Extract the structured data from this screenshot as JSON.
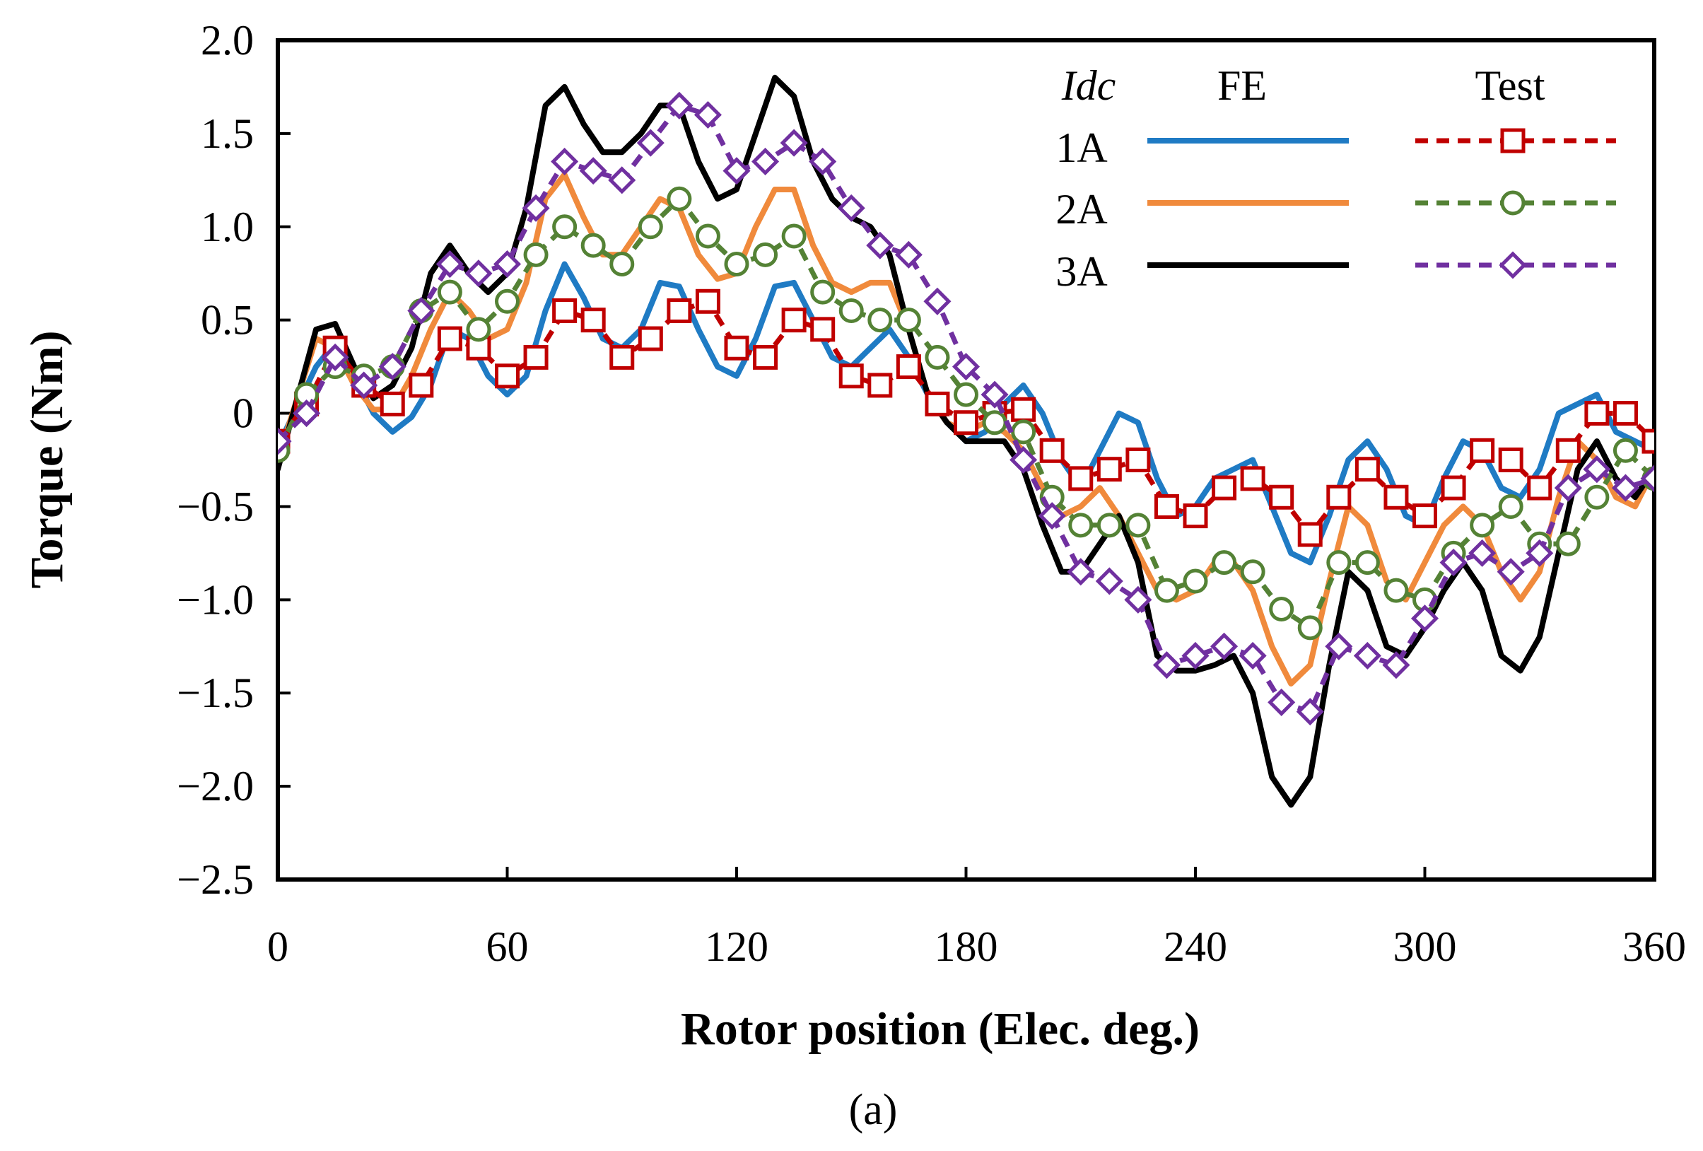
{
  "caption": "(a)",
  "chart_data": {
    "type": "line",
    "title": "",
    "xlabel": "Rotor position (Elec. deg.)",
    "ylabel": "Torque (Nm)",
    "xlim": [
      0,
      360
    ],
    "ylim": [
      -2.5,
      2.0
    ],
    "xticks": [
      0,
      60,
      120,
      180,
      240,
      300,
      360
    ],
    "xtick_labels": [
      "0",
      "60",
      "120",
      "180",
      "240",
      "300",
      "360"
    ],
    "yticks": [
      2.0,
      1.5,
      1.0,
      0.5,
      0,
      -0.5,
      -1.0,
      -1.5,
      -2.0,
      -2.5
    ],
    "ytick_labels": [
      "2.0",
      "1.5",
      "1.0",
      "0.5",
      "0",
      "−0.5",
      "−1.0",
      "−1.5",
      "−2.0",
      "−2.5"
    ],
    "grid": false,
    "legend": {
      "placement": "top-right",
      "header_left": "Idc",
      "header_fe": "FE",
      "header_test": "Test",
      "rows": [
        "1A",
        "2A",
        "3A"
      ]
    },
    "series": [
      {
        "name": "FE 1A",
        "color": "#1f7bc4",
        "style": "solid",
        "marker": "none",
        "x": [
          0,
          10,
          15,
          20,
          25,
          30,
          35,
          40,
          45,
          50,
          55,
          60,
          65,
          70,
          75,
          80,
          85,
          90,
          95,
          100,
          105,
          110,
          115,
          120,
          125,
          130,
          135,
          140,
          145,
          150,
          155,
          160,
          165,
          170,
          175,
          180,
          185,
          190,
          195,
          200,
          205,
          210,
          215,
          220,
          225,
          230,
          235,
          240,
          245,
          250,
          255,
          260,
          265,
          270,
          275,
          280,
          285,
          290,
          295,
          300,
          305,
          310,
          315,
          320,
          325,
          330,
          335,
          340,
          345,
          350,
          355,
          360
        ],
        "y": [
          -0.18,
          0.25,
          0.38,
          0.2,
          0.0,
          -0.1,
          -0.02,
          0.15,
          0.45,
          0.4,
          0.2,
          0.1,
          0.2,
          0.55,
          0.8,
          0.62,
          0.4,
          0.35,
          0.45,
          0.7,
          0.68,
          0.45,
          0.25,
          0.2,
          0.4,
          0.68,
          0.7,
          0.5,
          0.3,
          0.25,
          0.35,
          0.45,
          0.3,
          0.1,
          -0.05,
          -0.15,
          -0.1,
          0.05,
          0.15,
          0.0,
          -0.25,
          -0.4,
          -0.2,
          0.0,
          -0.05,
          -0.35,
          -0.55,
          -0.5,
          -0.35,
          -0.3,
          -0.25,
          -0.5,
          -0.75,
          -0.8,
          -0.55,
          -0.25,
          -0.15,
          -0.3,
          -0.55,
          -0.6,
          -0.35,
          -0.15,
          -0.2,
          -0.4,
          -0.45,
          -0.3,
          0.0,
          0.05,
          0.1,
          -0.1,
          -0.15,
          -0.2
        ]
      },
      {
        "name": "FE 2A",
        "color": "#f08a3c",
        "style": "solid",
        "marker": "none",
        "x": [
          0,
          10,
          15,
          20,
          25,
          30,
          35,
          40,
          45,
          50,
          55,
          60,
          65,
          70,
          75,
          80,
          85,
          90,
          95,
          100,
          105,
          110,
          115,
          120,
          125,
          130,
          135,
          140,
          145,
          150,
          155,
          160,
          165,
          170,
          175,
          180,
          185,
          190,
          195,
          200,
          205,
          210,
          215,
          220,
          225,
          230,
          235,
          240,
          245,
          250,
          255,
          260,
          265,
          270,
          275,
          280,
          285,
          290,
          295,
          300,
          305,
          310,
          315,
          320,
          325,
          330,
          335,
          340,
          345,
          350,
          355,
          360
        ],
        "y": [
          -0.25,
          0.4,
          0.35,
          0.15,
          0.02,
          0.02,
          0.2,
          0.45,
          0.65,
          0.55,
          0.4,
          0.45,
          0.7,
          1.15,
          1.28,
          1.05,
          0.85,
          0.85,
          1.0,
          1.15,
          1.1,
          0.85,
          0.72,
          0.75,
          1.0,
          1.2,
          1.2,
          0.9,
          0.7,
          0.65,
          0.7,
          0.7,
          0.45,
          0.1,
          -0.05,
          -0.1,
          -0.05,
          -0.1,
          -0.2,
          -0.4,
          -0.55,
          -0.5,
          -0.4,
          -0.55,
          -0.75,
          -0.95,
          -1.0,
          -0.95,
          -0.8,
          -0.8,
          -0.95,
          -1.25,
          -1.45,
          -1.35,
          -0.9,
          -0.5,
          -0.6,
          -0.9,
          -1.0,
          -0.8,
          -0.6,
          -0.5,
          -0.6,
          -0.85,
          -1.0,
          -0.85,
          -0.45,
          -0.15,
          -0.25,
          -0.45,
          -0.5,
          -0.3
        ]
      },
      {
        "name": "FE 3A",
        "color": "#000000",
        "style": "solid",
        "marker": "none",
        "x": [
          0,
          10,
          15,
          20,
          25,
          30,
          35,
          40,
          45,
          50,
          55,
          60,
          65,
          70,
          75,
          80,
          85,
          90,
          95,
          100,
          105,
          110,
          115,
          120,
          125,
          130,
          135,
          140,
          145,
          150,
          155,
          160,
          165,
          170,
          175,
          180,
          185,
          190,
          195,
          200,
          205,
          210,
          215,
          220,
          225,
          230,
          235,
          240,
          245,
          250,
          255,
          260,
          265,
          270,
          275,
          280,
          285,
          290,
          295,
          300,
          305,
          310,
          315,
          320,
          325,
          330,
          335,
          340,
          345,
          350,
          355,
          360
        ],
        "y": [
          -0.3,
          0.45,
          0.48,
          0.25,
          0.08,
          0.15,
          0.35,
          0.75,
          0.9,
          0.75,
          0.65,
          0.75,
          1.1,
          1.65,
          1.75,
          1.55,
          1.4,
          1.4,
          1.5,
          1.65,
          1.65,
          1.35,
          1.15,
          1.2,
          1.5,
          1.8,
          1.7,
          1.35,
          1.15,
          1.05,
          1.0,
          0.85,
          0.45,
          0.1,
          -0.05,
          -0.15,
          -0.15,
          -0.15,
          -0.3,
          -0.6,
          -0.85,
          -0.85,
          -0.7,
          -0.55,
          -0.8,
          -1.3,
          -1.38,
          -1.38,
          -1.35,
          -1.3,
          -1.5,
          -1.95,
          -2.1,
          -1.95,
          -1.35,
          -0.85,
          -0.95,
          -1.25,
          -1.3,
          -1.15,
          -0.95,
          -0.8,
          -0.95,
          -1.3,
          -1.38,
          -1.2,
          -0.75,
          -0.3,
          -0.15,
          -0.35,
          -0.45,
          -0.3
        ]
      },
      {
        "name": "Test 1A",
        "color": "#c00000",
        "style": "dashed",
        "marker": "square",
        "x": [
          0,
          7.5,
          15,
          22.5,
          30,
          37.5,
          45,
          52.5,
          60,
          67.5,
          75,
          82.5,
          90,
          97.5,
          105,
          112.5,
          120,
          127.5,
          135,
          142.5,
          150,
          157.5,
          165,
          172.5,
          180,
          187.5,
          195,
          202.5,
          210,
          217.5,
          225,
          232.5,
          240,
          247.5,
          255,
          262.5,
          270,
          277.5,
          285,
          292.5,
          300,
          307.5,
          315,
          322.5,
          330,
          337.5,
          345,
          352.5,
          360
        ],
        "y": [
          -0.15,
          0.05,
          0.35,
          0.15,
          0.05,
          0.15,
          0.4,
          0.35,
          0.2,
          0.3,
          0.55,
          0.5,
          0.3,
          0.4,
          0.55,
          0.6,
          0.35,
          0.3,
          0.5,
          0.45,
          0.2,
          0.15,
          0.25,
          0.05,
          -0.05,
          0.0,
          0.02,
          -0.2,
          -0.35,
          -0.3,
          -0.25,
          -0.5,
          -0.55,
          -0.4,
          -0.35,
          -0.45,
          -0.65,
          -0.45,
          -0.3,
          -0.45,
          -0.55,
          -0.4,
          -0.2,
          -0.25,
          -0.4,
          -0.2,
          0.0,
          0.0,
          -0.15
        ]
      },
      {
        "name": "Test 2A",
        "color": "#548235",
        "style": "dashed",
        "marker": "circle",
        "x": [
          0,
          7.5,
          15,
          22.5,
          30,
          37.5,
          45,
          52.5,
          60,
          67.5,
          75,
          82.5,
          90,
          97.5,
          105,
          112.5,
          120,
          127.5,
          135,
          142.5,
          150,
          157.5,
          165,
          172.5,
          180,
          187.5,
          195,
          202.5,
          210,
          217.5,
          225,
          232.5,
          240,
          247.5,
          255,
          262.5,
          270,
          277.5,
          285,
          292.5,
          300,
          307.5,
          315,
          322.5,
          330,
          337.5,
          345,
          352.5,
          360
        ],
        "y": [
          -0.2,
          0.1,
          0.25,
          0.2,
          0.25,
          0.55,
          0.65,
          0.45,
          0.6,
          0.85,
          1.0,
          0.9,
          0.8,
          1.0,
          1.15,
          0.95,
          0.8,
          0.85,
          0.95,
          0.65,
          0.55,
          0.5,
          0.5,
          0.3,
          0.1,
          -0.05,
          -0.1,
          -0.45,
          -0.6,
          -0.6,
          -0.6,
          -0.95,
          -0.9,
          -0.8,
          -0.85,
          -1.05,
          -1.15,
          -0.8,
          -0.8,
          -0.95,
          -1.0,
          -0.75,
          -0.6,
          -0.5,
          -0.7,
          -0.7,
          -0.45,
          -0.2,
          -0.35
        ]
      },
      {
        "name": "Test 3A",
        "color": "#7030a0",
        "style": "dashed",
        "marker": "diamond",
        "x": [
          0,
          7.5,
          15,
          22.5,
          30,
          37.5,
          45,
          52.5,
          60,
          67.5,
          75,
          82.5,
          90,
          97.5,
          105,
          112.5,
          120,
          127.5,
          135,
          142.5,
          150,
          157.5,
          165,
          172.5,
          180,
          187.5,
          195,
          202.5,
          210,
          217.5,
          225,
          232.5,
          240,
          247.5,
          255,
          262.5,
          270,
          277.5,
          285,
          292.5,
          300,
          307.5,
          315,
          322.5,
          330,
          337.5,
          345,
          352.5,
          360
        ],
        "y": [
          -0.15,
          0.0,
          0.3,
          0.15,
          0.25,
          0.55,
          0.8,
          0.75,
          0.8,
          1.1,
          1.35,
          1.3,
          1.25,
          1.45,
          1.65,
          1.6,
          1.3,
          1.35,
          1.45,
          1.35,
          1.1,
          0.9,
          0.85,
          0.6,
          0.25,
          0.1,
          -0.25,
          -0.55,
          -0.85,
          -0.9,
          -1.0,
          -1.35,
          -1.3,
          -1.25,
          -1.3,
          -1.55,
          -1.6,
          -1.25,
          -1.3,
          -1.35,
          -1.1,
          -0.8,
          -0.75,
          -0.85,
          -0.75,
          -0.4,
          -0.3,
          -0.4,
          -0.35
        ]
      }
    ]
  }
}
